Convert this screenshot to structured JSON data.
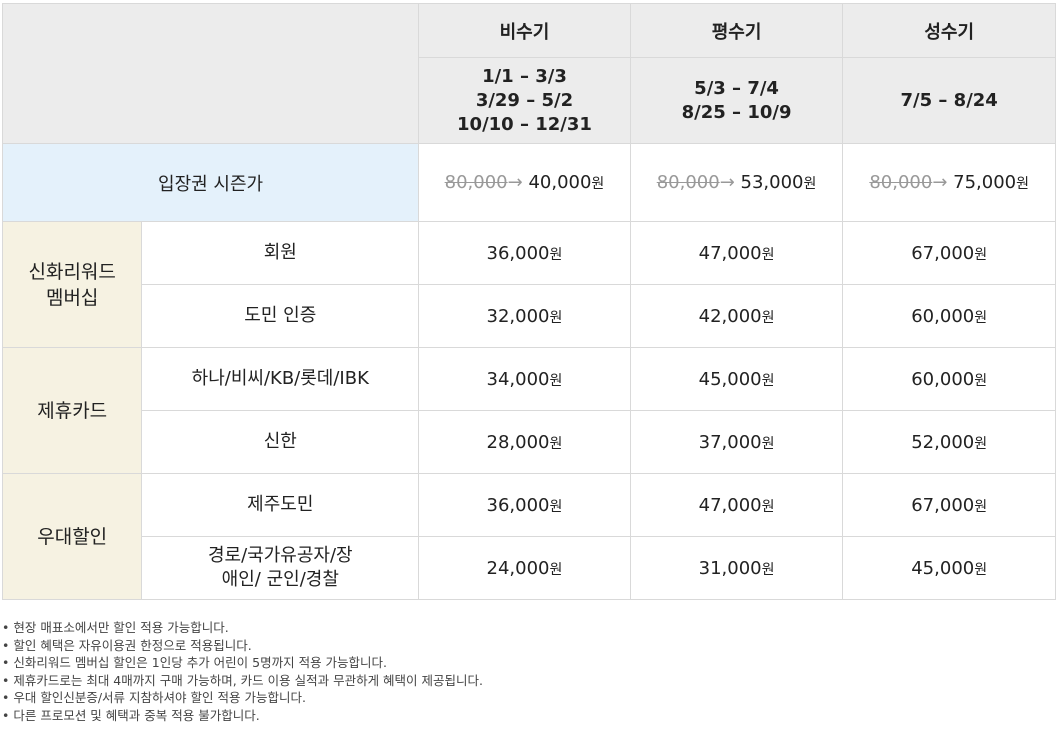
{
  "header": {
    "seasons": [
      "비수기",
      "평수기",
      "성수기"
    ],
    "dates": [
      [
        "1/1 – 3/3",
        "3/29 – 5/2",
        "10/10 – 12/31"
      ],
      [
        "5/3 – 7/4",
        "8/25 – 10/9"
      ],
      [
        "7/5 – 8/24"
      ]
    ]
  },
  "season_price": {
    "label": "입장권 시즌가",
    "original": "80,000",
    "arrow": "→",
    "prices": [
      "40,000",
      "53,000",
      "75,000"
    ],
    "unit": "원"
  },
  "groups": [
    {
      "name": "신화리워드 멤버십",
      "rows": [
        {
          "label": "회원",
          "prices": [
            "36,000",
            "47,000",
            "67,000"
          ]
        },
        {
          "label": "도민 인증",
          "prices": [
            "32,000",
            "42,000",
            "60,000"
          ]
        }
      ]
    },
    {
      "name": "제휴카드",
      "rows": [
        {
          "label": "하나/비씨/KB/롯데/IBK",
          "prices": [
            "34,000",
            "45,000",
            "60,000"
          ]
        },
        {
          "label": "신한",
          "prices": [
            "28,000",
            "37,000",
            "52,000"
          ]
        }
      ]
    },
    {
      "name": "우대할인",
      "rows": [
        {
          "label": "제주도민",
          "prices": [
            "36,000",
            "47,000",
            "67,000"
          ]
        },
        {
          "label": "경로/국가유공자/장애인/ 군인/경찰",
          "prices": [
            "24,000",
            "31,000",
            "45,000"
          ]
        }
      ]
    }
  ],
  "unit": "원",
  "notes": [
    "현장 매표소에서만 할인 적용 가능합니다.",
    "할인 혜택은 자유이용권 한정으로 적용됩니다.",
    "신화리워드 멤버십 할인은 1인당 추가 어린이 5명까지 적용 가능합니다.",
    "제휴카드로는 최대 4매까지 구매 가능하며, 카드 이용 실적과 무관하게 혜택이 제공됩니다.",
    "우대 할인신분증/서류 지참하셔야 할인 적용 가능합니다.",
    "다른 프로모션 및 혜택과 중복 적용 불가합니다."
  ]
}
